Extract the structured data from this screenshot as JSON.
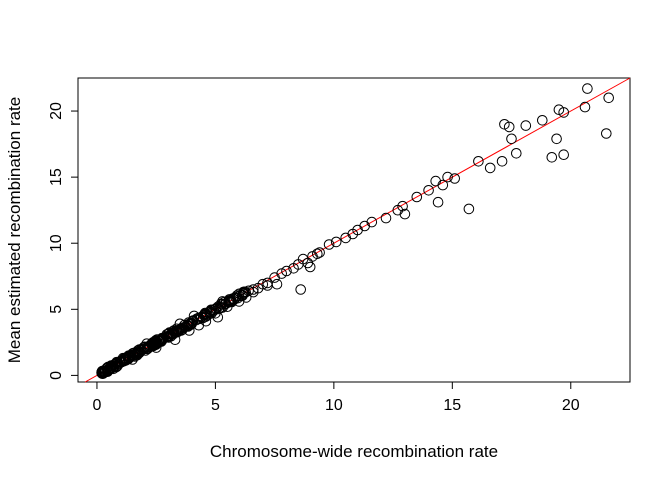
{
  "chart_data": {
    "type": "scatter",
    "title": "",
    "xlabel": "Chromosome-wide recombination rate",
    "ylabel": "Mean estimated recombination rate",
    "xlim": [
      -0.8,
      22.5
    ],
    "ylim": [
      -0.5,
      22.5
    ],
    "x_ticks": [
      0,
      5,
      10,
      15,
      20
    ],
    "y_ticks": [
      0,
      5,
      10,
      15,
      20
    ],
    "x_tick_labels": [
      "0",
      "5",
      "10",
      "15",
      "20"
    ],
    "y_tick_labels": [
      "0",
      "5",
      "10",
      "15",
      "20"
    ],
    "grid": false,
    "legend": "none",
    "reference_line": {
      "type": "identity",
      "slope": 1,
      "intercept": 0,
      "color": "#ff0000"
    },
    "marker": {
      "shape": "open-circle",
      "color": "#000000"
    },
    "dense_region": {
      "x_from": 0.2,
      "x_to": 6.5,
      "note": "many points tightly along y = x"
    },
    "points": [
      [
        0.2,
        0.25
      ],
      [
        0.3,
        0.3
      ],
      [
        0.45,
        0.4
      ],
      [
        0.6,
        0.6
      ],
      [
        0.8,
        0.75
      ],
      [
        1.0,
        1.0
      ],
      [
        1.2,
        1.15
      ],
      [
        1.4,
        1.4
      ],
      [
        1.6,
        1.6
      ],
      [
        1.8,
        1.75
      ],
      [
        2.0,
        2.0
      ],
      [
        2.2,
        2.2
      ],
      [
        2.4,
        2.35
      ],
      [
        2.6,
        2.6
      ],
      [
        2.8,
        2.8
      ],
      [
        3.0,
        2.95
      ],
      [
        3.2,
        3.2
      ],
      [
        3.4,
        3.35
      ],
      [
        3.6,
        3.6
      ],
      [
        3.8,
        3.8
      ],
      [
        4.0,
        3.95
      ],
      [
        4.2,
        4.2
      ],
      [
        4.4,
        4.4
      ],
      [
        4.6,
        4.55
      ],
      [
        4.8,
        4.8
      ],
      [
        5.0,
        5.0
      ],
      [
        5.2,
        5.15
      ],
      [
        5.4,
        5.4
      ],
      [
        5.6,
        5.6
      ],
      [
        5.8,
        5.75
      ],
      [
        6.0,
        6.0
      ],
      [
        6.2,
        6.2
      ],
      [
        6.4,
        6.4
      ],
      [
        0.7,
        0.5
      ],
      [
        1.5,
        1.2
      ],
      [
        2.5,
        2.1
      ],
      [
        3.3,
        2.7
      ],
      [
        3.9,
        3.4
      ],
      [
        4.3,
        3.8
      ],
      [
        4.6,
        4.1
      ],
      [
        5.0,
        4.7
      ],
      [
        5.5,
        5.2
      ],
      [
        6.0,
        5.6
      ],
      [
        6.3,
        5.9
      ],
      [
        1.1,
        1.3
      ],
      [
        2.1,
        2.4
      ],
      [
        3.5,
        3.9
      ],
      [
        4.1,
        4.5
      ],
      [
        5.3,
        5.6
      ],
      [
        5.1,
        4.4
      ],
      [
        6.6,
        6.3
      ],
      [
        6.8,
        6.6
      ],
      [
        7.0,
        6.9
      ],
      [
        7.2,
        7.0
      ],
      [
        7.5,
        7.4
      ],
      [
        7.8,
        7.7
      ],
      [
        8.0,
        7.9
      ],
      [
        8.3,
        8.1
      ],
      [
        8.5,
        8.4
      ],
      [
        8.7,
        8.8
      ],
      [
        8.9,
        8.5
      ],
      [
        9.1,
        9.0
      ],
      [
        9.3,
        9.2
      ],
      [
        8.6,
        6.5
      ],
      [
        6.6,
        6.5
      ],
      [
        7.6,
        6.9
      ],
      [
        7.2,
        6.8
      ],
      [
        9.0,
        8.2
      ],
      [
        9.4,
        9.3
      ],
      [
        9.8,
        9.9
      ],
      [
        10.1,
        10.1
      ],
      [
        10.5,
        10.4
      ],
      [
        10.8,
        10.7
      ],
      [
        11.0,
        11.0
      ],
      [
        11.3,
        11.3
      ],
      [
        11.6,
        11.6
      ],
      [
        12.2,
        11.9
      ],
      [
        12.7,
        12.5
      ],
      [
        12.9,
        12.8
      ],
      [
        13.0,
        12.2
      ],
      [
        13.5,
        13.5
      ],
      [
        14.0,
        14.0
      ],
      [
        14.3,
        14.7
      ],
      [
        14.4,
        13.1
      ],
      [
        14.6,
        14.4
      ],
      [
        14.8,
        15.0
      ],
      [
        15.1,
        14.9
      ],
      [
        15.7,
        12.6
      ],
      [
        16.1,
        16.2
      ],
      [
        16.6,
        15.7
      ],
      [
        17.1,
        16.2
      ],
      [
        17.2,
        19.0
      ],
      [
        17.4,
        18.8
      ],
      [
        17.5,
        17.9
      ],
      [
        17.7,
        16.8
      ],
      [
        18.1,
        18.9
      ],
      [
        18.8,
        19.3
      ],
      [
        19.2,
        16.5
      ],
      [
        19.4,
        17.9
      ],
      [
        19.5,
        20.1
      ],
      [
        19.7,
        19.9
      ],
      [
        19.7,
        16.7
      ],
      [
        20.6,
        20.3
      ],
      [
        20.7,
        21.7
      ],
      [
        21.5,
        18.3
      ],
      [
        21.6,
        21.0
      ]
    ]
  }
}
